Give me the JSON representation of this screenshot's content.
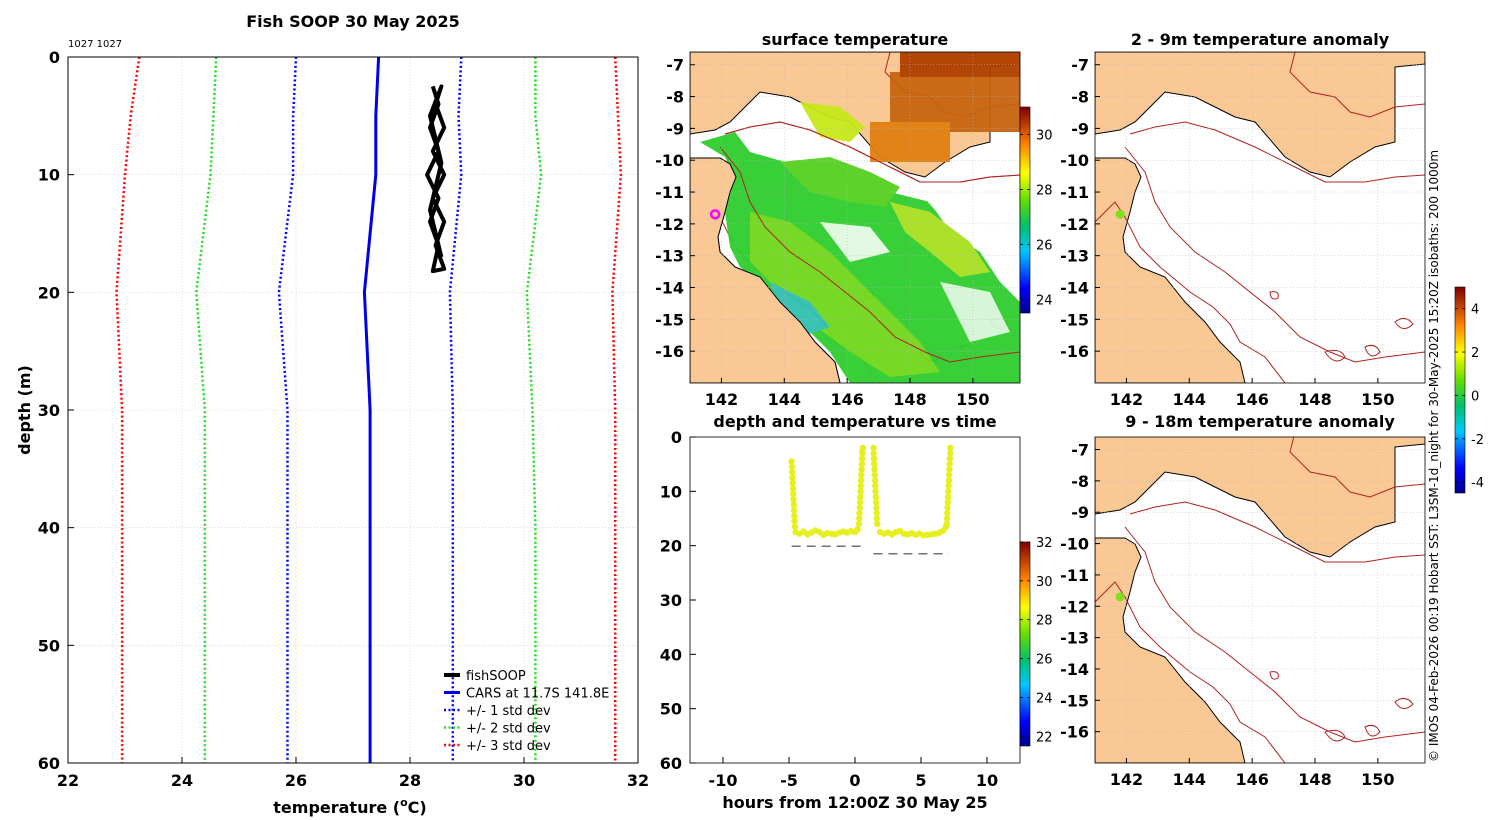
{
  "colors": {
    "land": "#f9c894",
    "coast": "#000000",
    "isobath": "#b22222",
    "cars": "#0000ee",
    "std1": "#0000ff",
    "std2": "#22dd22",
    "std3": "#ff0000",
    "fish": "#000000",
    "scatter": "#e6f01e",
    "marker_surface": "#ff00ff",
    "marker_anom": "#7de020"
  },
  "footer": {
    "credit": "© IMOS 04-Feb-2026 00:19 Hobart SST: L3SM-1d_night for 30-May-2025 15:20Z isobaths: 200  1000m"
  },
  "chart_data": [
    {
      "id": "profile",
      "type": "line",
      "title": "Fish SOOP 30 May 2025",
      "subtitle": "1027 1027",
      "xlabel": "temperature (",
      "xlabel_sup": "o",
      "xlabel_end": "C)",
      "ylabel": "depth (m)",
      "xlim": [
        22,
        32
      ],
      "ylim": [
        0,
        60
      ],
      "xticks": [
        22,
        24,
        26,
        28,
        30,
        32
      ],
      "yticks": [
        0,
        10,
        20,
        30,
        40,
        50,
        60
      ],
      "grid": true,
      "legend_position": "bottom-right",
      "series": [
        {
          "name": "fishSOOP",
          "style": "solid-thick",
          "color_key": "fish",
          "points": [
            [
              28.4,
              2.5
            ],
            [
              28.5,
              4
            ],
            [
              28.35,
              6
            ],
            [
              28.5,
              8
            ],
            [
              28.3,
              10
            ],
            [
              28.5,
              12
            ],
            [
              28.35,
              14
            ],
            [
              28.5,
              16
            ],
            [
              28.4,
              18.2
            ],
            [
              28.6,
              18
            ],
            [
              28.45,
              16
            ],
            [
              28.6,
              14
            ],
            [
              28.4,
              12
            ],
            [
              28.6,
              10
            ],
            [
              28.4,
              8
            ],
            [
              28.6,
              6
            ],
            [
              28.45,
              4
            ],
            [
              28.55,
              2.5
            ],
            [
              28.35,
              5
            ],
            [
              28.55,
              9
            ],
            [
              28.35,
              13
            ],
            [
              28.55,
              17
            ]
          ]
        },
        {
          "name": "CARS at 11.7S 141.8E",
          "style": "solid",
          "color_key": "cars",
          "points": [
            [
              27.45,
              0
            ],
            [
              27.4,
              5
            ],
            [
              27.4,
              10
            ],
            [
              27.2,
              20
            ],
            [
              27.3,
              30
            ],
            [
              27.3,
              40
            ],
            [
              27.3,
              50
            ],
            [
              27.3,
              60
            ]
          ]
        },
        {
          "name": "+/- 1 std dev",
          "style": "dotted",
          "color_key": "std1",
          "points": [
            [
              28.9,
              0
            ],
            [
              28.85,
              5
            ],
            [
              28.9,
              10
            ],
            [
              28.7,
              20
            ],
            [
              28.75,
              30
            ],
            [
              28.75,
              40
            ],
            [
              28.75,
              50
            ],
            [
              28.75,
              60
            ]
          ]
        },
        {
          "name": "",
          "style": "dotted",
          "color_key": "std1",
          "points": [
            [
              26.0,
              0
            ],
            [
              25.95,
              5
            ],
            [
              25.95,
              10
            ],
            [
              25.7,
              20
            ],
            [
              25.85,
              30
            ],
            [
              25.85,
              40
            ],
            [
              25.85,
              50
            ],
            [
              25.85,
              60
            ]
          ]
        },
        {
          "name": "+/- 2 std dev",
          "style": "dotted",
          "color_key": "std2",
          "points": [
            [
              30.2,
              0
            ],
            [
              30.2,
              5
            ],
            [
              30.3,
              10
            ],
            [
              30.05,
              20
            ],
            [
              30.15,
              30
            ],
            [
              30.2,
              40
            ],
            [
              30.2,
              50
            ],
            [
              30.2,
              60
            ]
          ]
        },
        {
          "name": "",
          "style": "dotted",
          "color_key": "std2",
          "points": [
            [
              24.6,
              0
            ],
            [
              24.55,
              5
            ],
            [
              24.5,
              10
            ],
            [
              24.25,
              20
            ],
            [
              24.4,
              30
            ],
            [
              24.4,
              40
            ],
            [
              24.4,
              50
            ],
            [
              24.4,
              60
            ]
          ]
        },
        {
          "name": "+/- 3 std dev",
          "style": "dotted",
          "color_key": "std3",
          "points": [
            [
              31.6,
              0
            ],
            [
              31.65,
              5
            ],
            [
              31.7,
              10
            ],
            [
              31.55,
              20
            ],
            [
              31.6,
              30
            ],
            [
              31.6,
              40
            ],
            [
              31.6,
              50
            ],
            [
              31.6,
              60
            ]
          ]
        },
        {
          "name": "",
          "style": "dotted",
          "color_key": "std3",
          "points": [
            [
              23.25,
              0
            ],
            [
              23.1,
              5
            ],
            [
              23.0,
              10
            ],
            [
              22.85,
              20
            ],
            [
              22.95,
              30
            ],
            [
              22.95,
              40
            ],
            [
              22.95,
              50
            ],
            [
              22.95,
              60
            ]
          ]
        }
      ]
    },
    {
      "id": "surface",
      "type": "heatmap",
      "title": "surface temperature",
      "xlim": [
        141,
        151.5
      ],
      "ylim": [
        -17,
        -6.6
      ],
      "xticks": [
        142,
        144,
        146,
        148,
        150
      ],
      "yticks": [
        -7,
        -8,
        -9,
        -10,
        -11,
        -12,
        -13,
        -14,
        -15,
        -16
      ],
      "colorbar": {
        "min": 23.5,
        "max": 31,
        "ticks": [
          24,
          26,
          28,
          30
        ]
      },
      "marker": {
        "lon": 141.8,
        "lat": -11.7
      }
    },
    {
      "id": "anom1",
      "type": "heatmap",
      "title": "2 - 9m temperature anomaly",
      "xlim": [
        141,
        151.5
      ],
      "ylim": [
        -17,
        -6.6
      ],
      "xticks": [
        142,
        144,
        146,
        148,
        150
      ],
      "yticks": [
        -7,
        -8,
        -9,
        -10,
        -11,
        -12,
        -13,
        -14,
        -15,
        -16
      ],
      "colorbar": {
        "min": -4.5,
        "max": 5,
        "ticks": [
          -4,
          -2,
          0,
          2,
          4
        ]
      },
      "marker": {
        "lon": 141.8,
        "lat": -11.7
      }
    },
    {
      "id": "anom2",
      "type": "heatmap",
      "title": "9 - 18m temperature anomaly",
      "xlim": [
        141,
        151.5
      ],
      "ylim": [
        -17,
        -6.6
      ],
      "xticks": [
        142,
        144,
        146,
        148,
        150
      ],
      "yticks": [
        -7,
        -8,
        -9,
        -10,
        -11,
        -12,
        -13,
        -14,
        -15,
        -16
      ],
      "marker": {
        "lon": 141.8,
        "lat": -11.7
      }
    },
    {
      "id": "timeseries",
      "type": "scatter",
      "title": "depth and temperature vs time",
      "xlabel": "hours from 12:00Z 30 May 25",
      "xlim": [
        -12.5,
        12.5
      ],
      "ylim": [
        0,
        60
      ],
      "xticks": [
        -10,
        -5,
        0,
        5,
        10
      ],
      "yticks": [
        0,
        10,
        20,
        30,
        40,
        50,
        60
      ],
      "colorbar": {
        "min": 21.5,
        "max": 32,
        "ticks": [
          22,
          24,
          26,
          28,
          30,
          32
        ]
      },
      "bottom_segments": [
        {
          "x0": -4.8,
          "x1": 0.6,
          "depth": 20.1
        },
        {
          "x0": 1.4,
          "x1": 7.1,
          "depth": 21.5
        }
      ],
      "series": [
        {
          "name": "descent1",
          "x": [
            -4.8,
            -4.78,
            -4.76,
            -4.74,
            -4.72,
            -4.7,
            -4.68,
            -4.66,
            -4.64,
            -4.62,
            -4.6,
            -4.58,
            -4.55
          ],
          "depth": [
            4.5,
            5.5,
            6.5,
            7.5,
            8.5,
            9.5,
            10.5,
            11.5,
            12.5,
            13.5,
            14.5,
            15.5,
            16.5
          ]
        },
        {
          "name": "bottom1",
          "x": [
            -4.5,
            -4.2,
            -3.9,
            -3.6,
            -3.3,
            -3.0,
            -2.7,
            -2.4,
            -2.1,
            -1.8,
            -1.5,
            -1.2,
            -0.9,
            -0.6,
            -0.3,
            0.0,
            0.2
          ],
          "depth": [
            17.5,
            17.8,
            17.4,
            17.9,
            17.6,
            17.2,
            17.5,
            18.0,
            17.7,
            17.8,
            17.9,
            17.6,
            17.4,
            17.6,
            17.3,
            17.5,
            17.0
          ]
        },
        {
          "name": "ascent1",
          "x": [
            0.3,
            0.32,
            0.34,
            0.36,
            0.38,
            0.4,
            0.42,
            0.44,
            0.46,
            0.48,
            0.5,
            0.52,
            0.54,
            0.56,
            0.58,
            0.6
          ],
          "depth": [
            16,
            15,
            14,
            13,
            12,
            11,
            10,
            9,
            8,
            7,
            6,
            5,
            4,
            3,
            2.5,
            2
          ]
        },
        {
          "name": "descent2",
          "x": [
            1.4,
            1.42,
            1.44,
            1.46,
            1.48,
            1.5,
            1.52,
            1.54,
            1.56,
            1.58,
            1.6,
            1.62,
            1.64,
            1.66,
            1.68
          ],
          "depth": [
            2,
            3,
            4,
            5,
            6,
            7,
            8,
            9,
            10,
            11,
            12,
            13,
            14,
            15,
            16
          ]
        },
        {
          "name": "bottom2",
          "x": [
            1.9,
            2.2,
            2.5,
            2.8,
            3.1,
            3.4,
            3.7,
            4.0,
            4.3,
            4.6,
            4.9,
            5.2,
            5.5,
            5.8,
            6.1,
            6.4,
            6.7,
            6.9
          ],
          "depth": [
            17.5,
            17.8,
            17.6,
            17.9,
            17.5,
            17.3,
            17.8,
            17.9,
            17.7,
            18.0,
            17.8,
            18.1,
            18.0,
            17.9,
            17.8,
            17.6,
            17.2,
            16.5
          ]
        },
        {
          "name": "ascent2",
          "x": [
            6.95,
            6.97,
            6.99,
            7.01,
            7.03,
            7.05,
            7.07,
            7.09,
            7.11,
            7.13,
            7.15,
            7.17,
            7.19,
            7.21,
            7.23
          ],
          "depth": [
            16,
            15,
            14,
            13,
            12,
            11,
            10,
            9,
            8,
            7,
            6,
            5,
            4,
            3,
            2
          ]
        }
      ]
    }
  ]
}
